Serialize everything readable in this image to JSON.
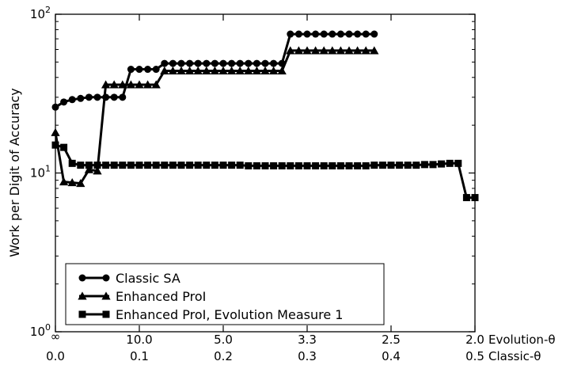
{
  "chart_data": {
    "type": "line",
    "ylabel": "Work per Digit of Accuracy",
    "y_scale": "log",
    "ylim": [
      1,
      100
    ],
    "xlim": [
      0.0,
      0.5
    ],
    "grid": false,
    "legend_position": "lower-left",
    "y_ticks": [
      {
        "value": 1,
        "base": "10",
        "exp": "0"
      },
      {
        "value": 10,
        "base": "10",
        "exp": "1"
      },
      {
        "value": 100,
        "base": "10",
        "exp": "2"
      }
    ],
    "x_axis_rows": [
      {
        "label": "Evolution-θ",
        "ticks": [
          {
            "x": 0.0,
            "text": "∞"
          },
          {
            "x": 0.1,
            "text": "10.0"
          },
          {
            "x": 0.2,
            "text": "5.0"
          },
          {
            "x": 0.3,
            "text": "3.3"
          },
          {
            "x": 0.4,
            "text": "2.5"
          },
          {
            "x": 0.5,
            "text": "2.0"
          }
        ]
      },
      {
        "label": "Classic-θ",
        "ticks": [
          {
            "x": 0.0,
            "text": "0.0"
          },
          {
            "x": 0.1,
            "text": "0.1"
          },
          {
            "x": 0.2,
            "text": "0.2"
          },
          {
            "x": 0.3,
            "text": "0.3"
          },
          {
            "x": 0.4,
            "text": "0.4"
          },
          {
            "x": 0.5,
            "text": "0.5"
          }
        ]
      }
    ],
    "series": [
      {
        "name": "Classic SA",
        "marker": "circle",
        "points": [
          [
            0.0,
            26
          ],
          [
            0.01,
            28
          ],
          [
            0.02,
            29
          ],
          [
            0.03,
            29.5
          ],
          [
            0.04,
            30
          ],
          [
            0.05,
            30
          ],
          [
            0.06,
            30
          ],
          [
            0.07,
            30
          ],
          [
            0.08,
            30
          ],
          [
            0.09,
            45
          ],
          [
            0.1,
            45
          ],
          [
            0.11,
            45
          ],
          [
            0.12,
            45
          ],
          [
            0.13,
            49
          ],
          [
            0.14,
            49
          ],
          [
            0.15,
            49
          ],
          [
            0.16,
            49
          ],
          [
            0.17,
            49
          ],
          [
            0.18,
            49
          ],
          [
            0.19,
            49
          ],
          [
            0.2,
            49
          ],
          [
            0.21,
            49
          ],
          [
            0.22,
            49
          ],
          [
            0.23,
            49
          ],
          [
            0.24,
            49
          ],
          [
            0.25,
            49
          ],
          [
            0.26,
            49
          ],
          [
            0.27,
            49
          ],
          [
            0.28,
            75
          ],
          [
            0.29,
            75
          ],
          [
            0.3,
            75
          ],
          [
            0.31,
            75
          ],
          [
            0.32,
            75
          ],
          [
            0.33,
            75
          ],
          [
            0.34,
            75
          ],
          [
            0.35,
            75
          ],
          [
            0.36,
            75
          ],
          [
            0.37,
            75
          ],
          [
            0.38,
            75
          ]
        ]
      },
      {
        "name": "Enhanced ProI",
        "marker": "triangle",
        "points": [
          [
            0.0,
            18
          ],
          [
            0.01,
            8.8
          ],
          [
            0.02,
            8.7
          ],
          [
            0.03,
            8.6
          ],
          [
            0.04,
            10.5
          ],
          [
            0.05,
            10.3
          ],
          [
            0.06,
            36
          ],
          [
            0.07,
            36
          ],
          [
            0.08,
            36
          ],
          [
            0.09,
            36
          ],
          [
            0.1,
            36
          ],
          [
            0.11,
            36
          ],
          [
            0.12,
            36
          ],
          [
            0.13,
            44
          ],
          [
            0.14,
            44
          ],
          [
            0.15,
            44
          ],
          [
            0.16,
            44
          ],
          [
            0.17,
            44
          ],
          [
            0.18,
            44
          ],
          [
            0.19,
            44
          ],
          [
            0.2,
            44
          ],
          [
            0.21,
            44
          ],
          [
            0.22,
            44
          ],
          [
            0.23,
            44
          ],
          [
            0.24,
            44
          ],
          [
            0.25,
            44
          ],
          [
            0.26,
            44
          ],
          [
            0.27,
            44
          ],
          [
            0.28,
            59
          ],
          [
            0.29,
            59
          ],
          [
            0.3,
            59
          ],
          [
            0.31,
            59
          ],
          [
            0.32,
            59
          ],
          [
            0.33,
            59
          ],
          [
            0.34,
            59
          ],
          [
            0.35,
            59
          ],
          [
            0.36,
            59
          ],
          [
            0.37,
            59
          ],
          [
            0.38,
            59
          ]
        ]
      },
      {
        "name": "Enhanced ProI, Evolution Measure 1",
        "marker": "square",
        "points": [
          [
            0.0,
            15
          ],
          [
            0.01,
            14.5
          ],
          [
            0.02,
            11.5
          ],
          [
            0.03,
            11.2
          ],
          [
            0.04,
            11.2
          ],
          [
            0.05,
            11.2
          ],
          [
            0.06,
            11.2
          ],
          [
            0.07,
            11.2
          ],
          [
            0.08,
            11.2
          ],
          [
            0.09,
            11.2
          ],
          [
            0.1,
            11.2
          ],
          [
            0.11,
            11.2
          ],
          [
            0.12,
            11.2
          ],
          [
            0.13,
            11.2
          ],
          [
            0.14,
            11.2
          ],
          [
            0.15,
            11.2
          ],
          [
            0.16,
            11.2
          ],
          [
            0.17,
            11.2
          ],
          [
            0.18,
            11.2
          ],
          [
            0.19,
            11.2
          ],
          [
            0.2,
            11.2
          ],
          [
            0.21,
            11.2
          ],
          [
            0.22,
            11.2
          ],
          [
            0.23,
            11.1
          ],
          [
            0.24,
            11.1
          ],
          [
            0.25,
            11.1
          ],
          [
            0.26,
            11.1
          ],
          [
            0.27,
            11.1
          ],
          [
            0.28,
            11.1
          ],
          [
            0.29,
            11.1
          ],
          [
            0.3,
            11.1
          ],
          [
            0.31,
            11.1
          ],
          [
            0.32,
            11.1
          ],
          [
            0.33,
            11.1
          ],
          [
            0.34,
            11.1
          ],
          [
            0.35,
            11.1
          ],
          [
            0.36,
            11.1
          ],
          [
            0.37,
            11.1
          ],
          [
            0.38,
            11.2
          ],
          [
            0.39,
            11.2
          ],
          [
            0.4,
            11.2
          ],
          [
            0.41,
            11.2
          ],
          [
            0.42,
            11.2
          ],
          [
            0.43,
            11.2
          ],
          [
            0.44,
            11.3
          ],
          [
            0.45,
            11.3
          ],
          [
            0.46,
            11.4
          ],
          [
            0.47,
            11.5
          ],
          [
            0.48,
            11.5
          ],
          [
            0.49,
            7.0
          ],
          [
            0.5,
            7.0
          ]
        ]
      }
    ]
  }
}
